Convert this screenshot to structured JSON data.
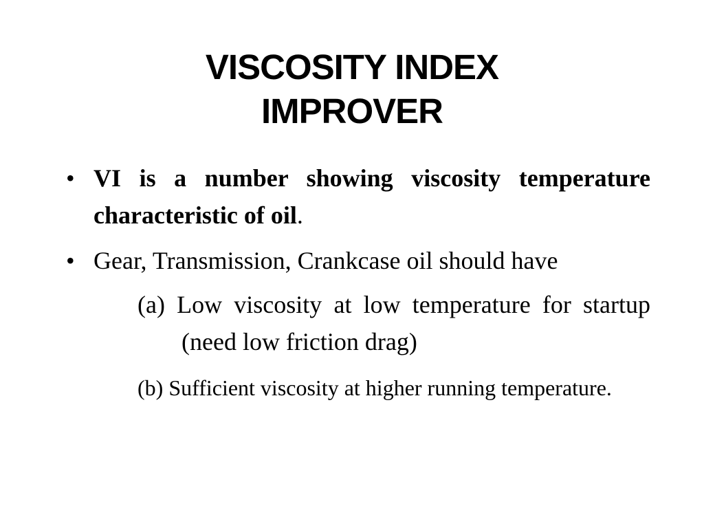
{
  "slide": {
    "title_line1": "VISCOSITY INDEX",
    "title_line2": "IMPROVER",
    "bullets": [
      {
        "marker": "•",
        "bold_text": "VI is a number showing viscosity temperature characteristic of oil",
        "tail": "."
      },
      {
        "marker": "•",
        "text": "Gear, Transmission, Crankcase oil should have"
      }
    ],
    "subitems": [
      {
        "text": "(a) Low viscosity at low temperature for startup (need low friction drag)"
      },
      {
        "text": "(b) Sufficient viscosity at higher running temperature."
      }
    ]
  }
}
